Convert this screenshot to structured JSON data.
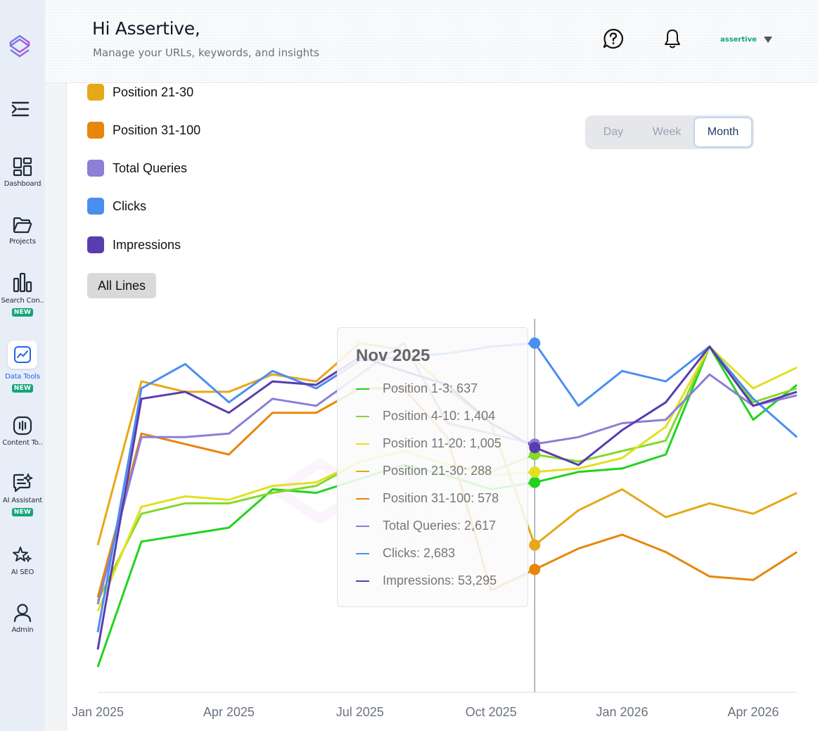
{
  "header": {
    "greeting": "Hi Assertive,",
    "subtitle": "Manage your URLs, keywords, and insights",
    "user_name": "assertive"
  },
  "sidebar": {
    "items": [
      {
        "label": "Dashboard",
        "icon": "dashboard-icon"
      },
      {
        "label": "Projects",
        "icon": "folder-icon"
      },
      {
        "label": "Search Con..",
        "icon": "bar-chart-icon",
        "badge": "NEW"
      },
      {
        "label": "Data Tools",
        "icon": "trend-chart-icon",
        "badge": "NEW",
        "active": true
      },
      {
        "label": "Content To..",
        "icon": "content-icon"
      },
      {
        "label": "AI Assistant",
        "icon": "chat-sparkle-icon",
        "badge": "NEW"
      },
      {
        "label": "AI SEO",
        "icon": "stars-icon"
      },
      {
        "label": "Admin",
        "icon": "user-icon"
      }
    ]
  },
  "legend": [
    {
      "label": "Position 21-30",
      "color": "#e6a817"
    },
    {
      "label": "Position 31-100",
      "color": "#e6870b"
    },
    {
      "label": "Total Queries",
      "color": "#8b7fd6"
    },
    {
      "label": "Clicks",
      "color": "#4a8ef0"
    },
    {
      "label": "Impressions",
      "color": "#5b3bb0"
    }
  ],
  "all_lines_label": "All Lines",
  "period": {
    "options": [
      "Day",
      "Week",
      "Month"
    ],
    "selected": "Month"
  },
  "tooltip": {
    "title": "Nov 2025",
    "rows": [
      {
        "text": "Position 1-3: 637",
        "color": "#22d31f"
      },
      {
        "text": "Position 4-10: 1,404",
        "color": "#84d92a"
      },
      {
        "text": "Position 11-20: 1,005",
        "color": "#e2e01f"
      },
      {
        "text": "Position 21-30: 288",
        "color": "#e6a817"
      },
      {
        "text": "Position 31-100: 578",
        "color": "#e6870b"
      },
      {
        "text": "Total Queries: 2,617",
        "color": "#8b7fd6"
      },
      {
        "text": "Clicks: 2,683",
        "color": "#4a8ef0"
      },
      {
        "text": "Impressions: 53,295",
        "color": "#5b3bb0"
      }
    ]
  },
  "chart_data": {
    "type": "line",
    "x": [
      "Jan 2025",
      "Feb 2025",
      "Mar 2025",
      "Apr 2025",
      "May 2025",
      "Jun 2025",
      "Jul 2025",
      "Aug 2025",
      "Sep 2025",
      "Oct 2025",
      "Nov 2025",
      "Dec 2025",
      "Jan 2026",
      "Feb 2026",
      "Mar 2026",
      "Apr 2026",
      "May 2026"
    ],
    "x_tick_labels": [
      "Jan 2025",
      "Apr 2025",
      "Jul 2025",
      "Oct 2025",
      "Jan 2026",
      "Apr 2026"
    ],
    "highlighted_x": "Nov 2025",
    "scale": "each series normalized to 0-1 of its own range",
    "series": [
      {
        "name": "Position 1-3",
        "color": "#22d31f",
        "values": [
          0.0,
          0.36,
          0.38,
          0.4,
          0.51,
          0.5,
          0.54,
          0.58,
          0.55,
          0.51,
          0.53,
          0.56,
          0.57,
          0.61,
          0.92,
          0.71,
          0.81
        ]
      },
      {
        "name": "Position 4-10",
        "color": "#84d92a",
        "values": [
          0.19,
          0.44,
          0.47,
          0.47,
          0.5,
          0.52,
          0.59,
          0.62,
          0.58,
          0.56,
          0.61,
          0.59,
          0.62,
          0.65,
          0.92,
          0.76,
          0.8
        ]
      },
      {
        "name": "Position 11-20",
        "color": "#e2e01f",
        "values": [
          0.16,
          0.46,
          0.49,
          0.48,
          0.52,
          0.53,
          0.59,
          0.62,
          0.58,
          0.55,
          0.56,
          0.57,
          0.6,
          0.69,
          0.92,
          0.8,
          0.86
        ]
      },
      {
        "name": "Position 21-30",
        "color": "#e6a817",
        "values": [
          0.35,
          0.82,
          0.79,
          0.79,
          0.84,
          0.82,
          0.93,
          0.91,
          0.8,
          0.7,
          0.35,
          0.45,
          0.51,
          0.43,
          0.47,
          0.44,
          0.5
        ]
      },
      {
        "name": "Position 31-100",
        "color": "#e6870b",
        "values": [
          0.2,
          0.67,
          0.64,
          0.61,
          0.73,
          0.73,
          0.8,
          0.8,
          0.66,
          0.22,
          0.28,
          0.34,
          0.38,
          0.33,
          0.26,
          0.25,
          0.33
        ]
      },
      {
        "name": "Total Queries",
        "color": "#8b7fd6",
        "values": [
          0.18,
          0.66,
          0.66,
          0.67,
          0.77,
          0.75,
          0.84,
          0.93,
          0.7,
          0.67,
          0.64,
          0.66,
          0.7,
          0.71,
          0.84,
          0.75,
          0.78
        ]
      },
      {
        "name": "Clicks",
        "color": "#4a8ef0",
        "values": [
          0.1,
          0.8,
          0.87,
          0.76,
          0.85,
          0.8,
          0.88,
          0.89,
          0.9,
          0.92,
          0.93,
          0.75,
          0.85,
          0.82,
          0.92,
          0.77,
          0.66
        ]
      },
      {
        "name": "Impressions",
        "color": "#5b3bb0",
        "values": [
          0.05,
          0.77,
          0.79,
          0.73,
          0.82,
          0.81,
          0.89,
          0.85,
          0.81,
          0.7,
          0.63,
          0.58,
          0.68,
          0.76,
          0.92,
          0.75,
          0.79
        ]
      }
    ],
    "grid": false,
    "legend": "top-left"
  }
}
